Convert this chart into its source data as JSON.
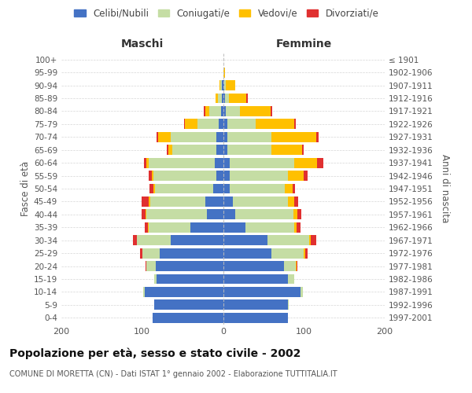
{
  "age_groups": [
    "100+",
    "95-99",
    "90-94",
    "85-89",
    "80-84",
    "75-79",
    "70-74",
    "65-69",
    "60-64",
    "55-59",
    "50-54",
    "45-49",
    "40-44",
    "35-39",
    "30-34",
    "25-29",
    "20-24",
    "15-19",
    "10-14",
    "5-9",
    "0-4"
  ],
  "birth_years": [
    "≤ 1901",
    "1902-1906",
    "1907-1911",
    "1912-1916",
    "1917-1921",
    "1922-1926",
    "1927-1931",
    "1932-1936",
    "1937-1941",
    "1942-1946",
    "1947-1951",
    "1952-1956",
    "1957-1961",
    "1962-1966",
    "1967-1971",
    "1972-1976",
    "1977-1981",
    "1982-1986",
    "1987-1991",
    "1992-1996",
    "1997-2001"
  ],
  "maschi": {
    "celibi": [
      0,
      0,
      1,
      1,
      2,
      5,
      8,
      8,
      10,
      8,
      12,
      22,
      20,
      40,
      65,
      78,
      83,
      82,
      97,
      85,
      87
    ],
    "coniugati": [
      0,
      0,
      2,
      5,
      15,
      27,
      57,
      55,
      82,
      78,
      72,
      68,
      75,
      52,
      42,
      22,
      12,
      3,
      2,
      0,
      0
    ],
    "vedovi": [
      0,
      0,
      1,
      3,
      5,
      15,
      15,
      5,
      3,
      2,
      2,
      2,
      1,
      1,
      0,
      0,
      0,
      0,
      0,
      0,
      0
    ],
    "divorziati": [
      0,
      0,
      0,
      0,
      2,
      1,
      2,
      2,
      3,
      4,
      5,
      9,
      5,
      4,
      4,
      3,
      1,
      0,
      0,
      0,
      0
    ]
  },
  "femmine": {
    "nubili": [
      0,
      0,
      1,
      2,
      3,
      5,
      5,
      5,
      8,
      8,
      8,
      12,
      15,
      28,
      55,
      60,
      75,
      80,
      96,
      80,
      80
    ],
    "coniugate": [
      0,
      0,
      2,
      5,
      18,
      35,
      55,
      55,
      80,
      72,
      68,
      68,
      72,
      60,
      52,
      40,
      15,
      8,
      3,
      1,
      0
    ],
    "vedove": [
      0,
      2,
      12,
      22,
      38,
      48,
      55,
      38,
      28,
      20,
      10,
      8,
      5,
      3,
      2,
      2,
      1,
      0,
      0,
      0,
      0
    ],
    "divorziate": [
      0,
      0,
      0,
      2,
      2,
      2,
      3,
      2,
      8,
      5,
      3,
      5,
      5,
      5,
      6,
      3,
      1,
      0,
      0,
      0,
      0
    ]
  },
  "colors": {
    "celibi": "#4472c4",
    "coniugati": "#c5dda4",
    "vedovi": "#ffc000",
    "divorziati": "#e03030"
  },
  "xlim": 200,
  "title": "Popolazione per età, sesso e stato civile - 2002",
  "subtitle": "COMUNE DI MORETTA (CN) - Dati ISTAT 1° gennaio 2002 - Elaborazione TUTTITALIA.IT",
  "ylabel_left": "Fasce di età",
  "ylabel_right": "Anni di nascita",
  "xlabel_left": "Maschi",
  "xlabel_right": "Femmine",
  "background_color": "#ffffff",
  "grid_color": "#cccccc"
}
